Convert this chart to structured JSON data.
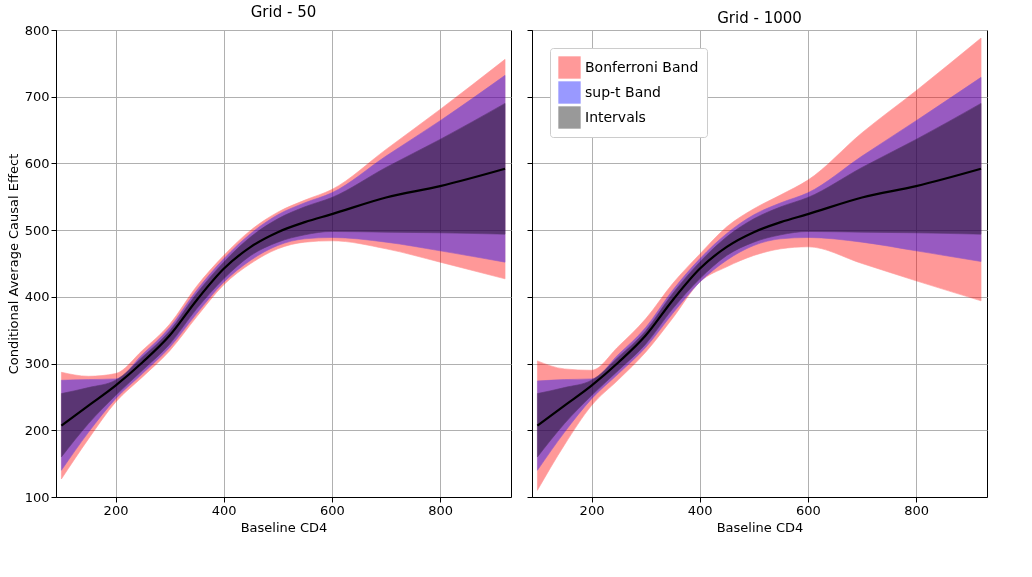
{
  "chart_data": [
    {
      "type": "line",
      "title": "Grid - 50",
      "xlabel": "Baseline CD4",
      "ylabel": "Conditional Average Causal Effect",
      "x": [
        100,
        150,
        200,
        250,
        300,
        350,
        400,
        450,
        500,
        550,
        600,
        700,
        800,
        920
      ],
      "xlim": [
        90,
        931
      ],
      "xticks": [
        200,
        400,
        600,
        800
      ],
      "ylim": [
        100,
        800
      ],
      "yticks": [
        100,
        200,
        300,
        400,
        500,
        600,
        700,
        800
      ],
      "grid": true,
      "legend": false,
      "series": [
        {
          "color": "#ff0000",
          "values": [
            null,
            null,
            null,
            null,
            null,
            null,
            null,
            null,
            null,
            null,
            null,
            null,
            null,
            null
          ],
          "lower": [
            127,
            187,
            242,
            280,
            319,
            370,
            418,
            450,
            472,
            482,
            484,
            472,
            452,
            427
          ],
          "upper": [
            287,
            281,
            285,
            320,
            359,
            416,
            462,
            500,
            527,
            545,
            561,
            621,
            681,
            756
          ]
        },
        {
          "color": "#0000ff",
          "values": [
            null,
            null,
            null,
            null,
            null,
            null,
            null,
            null,
            null,
            null,
            null,
            null,
            null,
            null
          ],
          "lower": [
            140,
            197,
            247,
            285,
            324,
            375,
            422,
            455,
            477,
            487,
            489,
            482,
            469,
            452
          ],
          "upper": [
            275,
            276,
            277,
            314,
            354,
            410,
            457,
            495,
            523,
            541,
            556,
            611,
            664,
            732
          ]
        },
        {
          "color": "#000000",
          "values": [
            207,
            237,
            267,
            302,
            342,
            395,
            442,
            475,
            497,
            512,
            524,
            549,
            566,
            592
          ],
          "lower": [
            160,
            210,
            252,
            290,
            329,
            382,
            427,
            462,
            482,
            493,
            498,
            497,
            496,
            494
          ],
          "upper": [
            255,
            264,
            275,
            310,
            349,
            405,
            452,
            490,
            517,
            535,
            549,
            594,
            636,
            690
          ]
        }
      ]
    },
    {
      "type": "line",
      "title": "Grid - 1000",
      "xlabel": "Baseline CD4",
      "x": [
        100,
        150,
        200,
        250,
        300,
        350,
        400,
        450,
        500,
        550,
        600,
        700,
        800,
        920
      ],
      "xlim": [
        90,
        931
      ],
      "xticks": [
        200,
        400,
        600,
        800
      ],
      "ylim": [
        100,
        800
      ],
      "yticks": [
        100,
        200,
        300,
        400,
        500,
        600,
        700,
        800
      ],
      "grid": true,
      "legend": "top left",
      "tick_labels": "x",
      "series": [
        {
          "name": "Bonferroni Band",
          "color": "#ff0000",
          "values": [
            null,
            null,
            null,
            null,
            null,
            null,
            null,
            null,
            null,
            null,
            null,
            null,
            null,
            null
          ],
          "lower": [
            110,
            178,
            237,
            276,
            317,
            368,
            422,
            445,
            462,
            472,
            475,
            450,
            424,
            394
          ],
          "upper": [
            304,
            292,
            290,
            326,
            367,
            420,
            464,
            505,
            532,
            553,
            575,
            646,
            709,
            788
          ]
        },
        {
          "name": "sup-t Band",
          "color": "#0000ff",
          "values": [
            null,
            null,
            null,
            null,
            null,
            null,
            null,
            null,
            null,
            null,
            null,
            null,
            null,
            null
          ],
          "lower": [
            140,
            197,
            247,
            285,
            324,
            375,
            422,
            455,
            477,
            487,
            489,
            482,
            469,
            453
          ],
          "upper": [
            274,
            276,
            277,
            314,
            354,
            410,
            457,
            495,
            523,
            541,
            556,
            611,
            664,
            729
          ]
        },
        {
          "name": "Intervals",
          "color": "#000000",
          "values": [
            207,
            237,
            267,
            302,
            342,
            395,
            442,
            475,
            497,
            512,
            524,
            549,
            566,
            592
          ],
          "lower": [
            160,
            210,
            252,
            290,
            329,
            382,
            427,
            462,
            482,
            493,
            498,
            497,
            496,
            494
          ],
          "upper": [
            255,
            264,
            275,
            310,
            349,
            405,
            452,
            490,
            517,
            535,
            549,
            594,
            636,
            690
          ]
        }
      ]
    }
  ]
}
